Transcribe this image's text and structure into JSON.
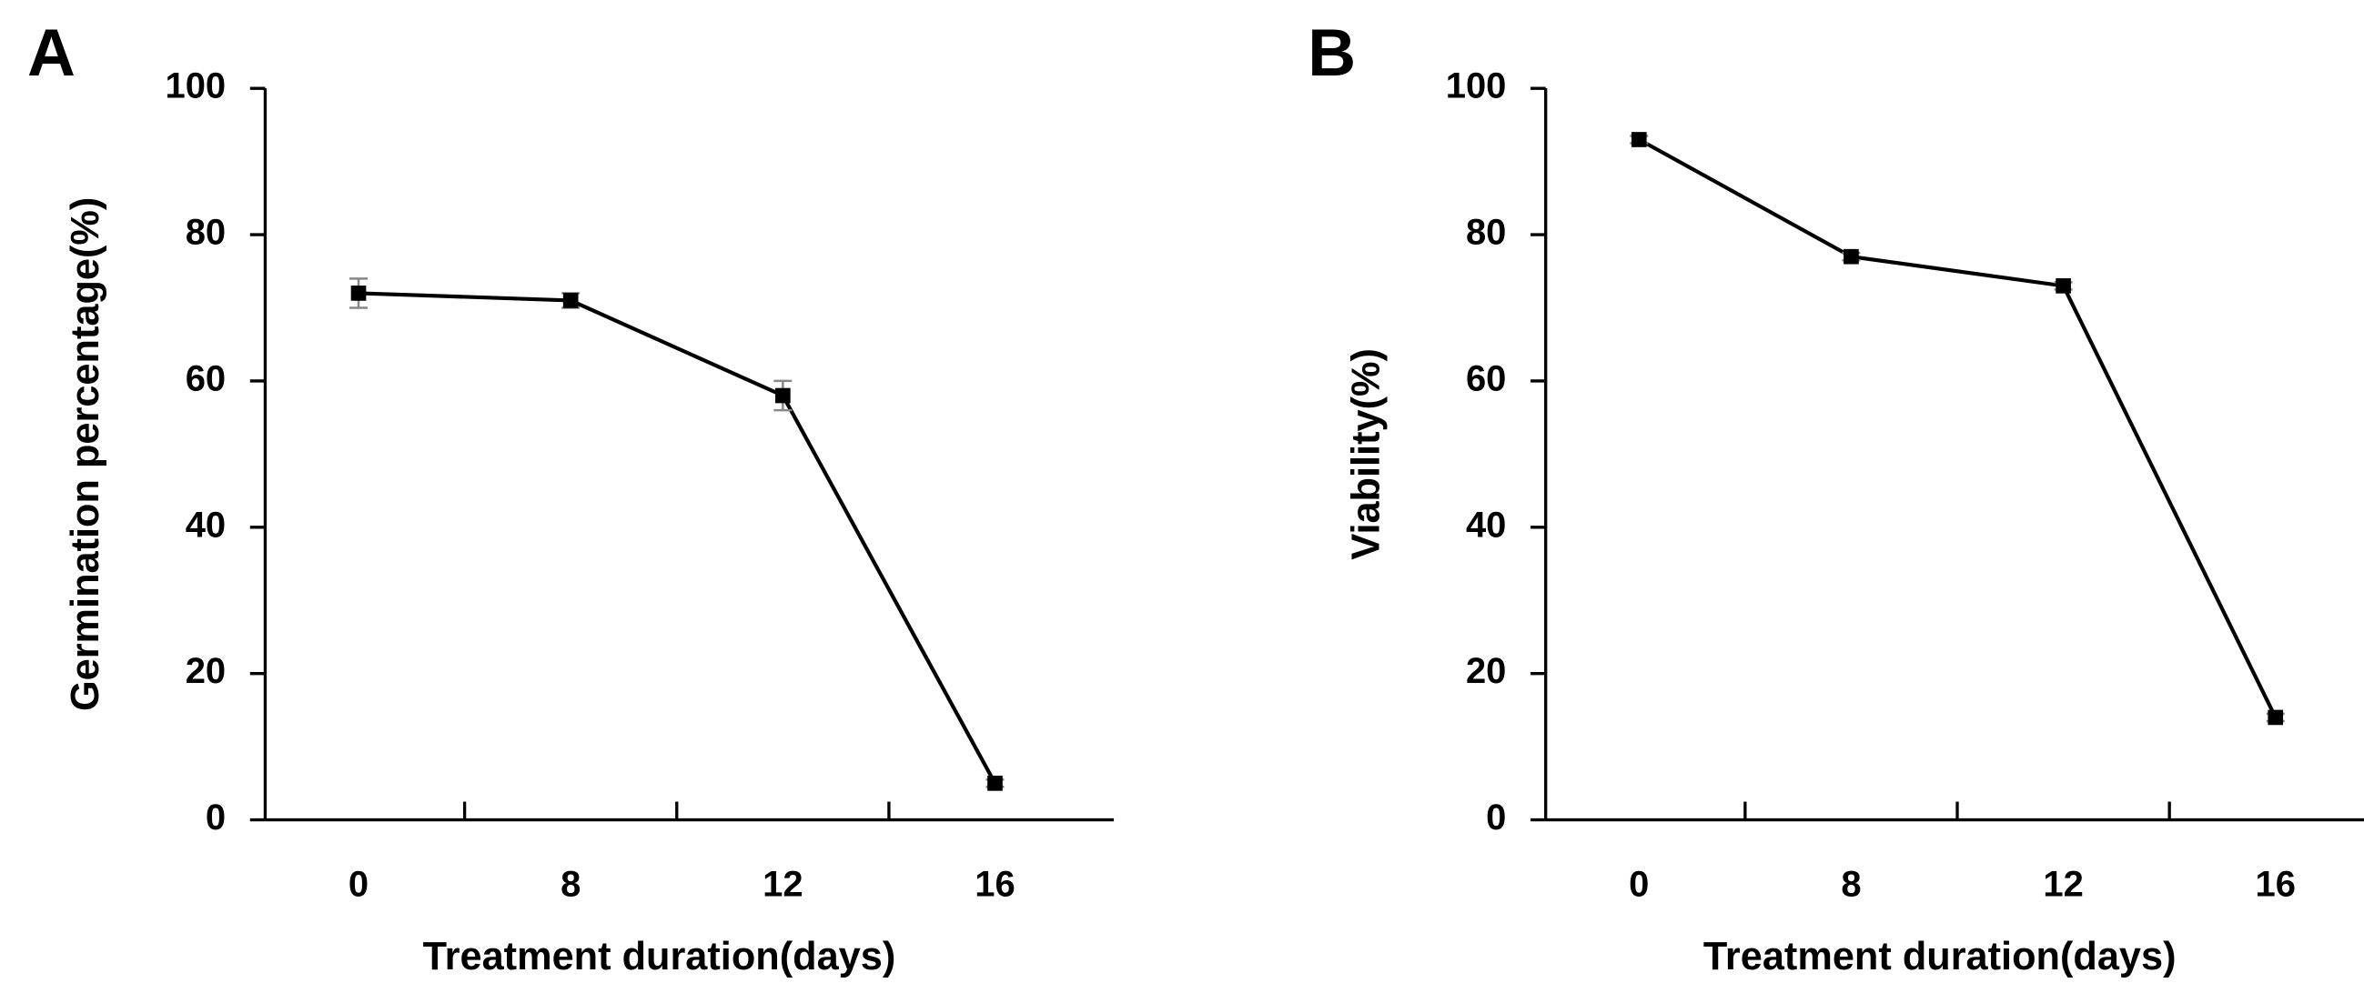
{
  "chart_data": [
    {
      "type": "line",
      "label": "A",
      "ylabel": "Germination percentage(%)",
      "xlabel": "Treatment duration(days)",
      "categories": [
        "0",
        "8",
        "12",
        "16"
      ],
      "values": [
        72,
        71,
        58,
        5
      ],
      "errors": [
        2,
        1,
        2,
        0.5
      ],
      "color": "#000000",
      "ylim": [
        0,
        100
      ],
      "yticks": [
        0,
        20,
        40,
        60,
        80,
        100
      ]
    },
    {
      "type": "line",
      "label": "B",
      "ylabel": "Viability(%)",
      "xlabel": "Treatment duration(days)",
      "categories": [
        "0",
        "8",
        "12",
        "16"
      ],
      "values": [
        93,
        77,
        73,
        14
      ],
      "errors": [
        0.5,
        0.5,
        0.5,
        0.5
      ],
      "color": "#000000",
      "ylim": [
        0,
        100
      ],
      "yticks": [
        0,
        20,
        40,
        60,
        80,
        100
      ]
    }
  ]
}
